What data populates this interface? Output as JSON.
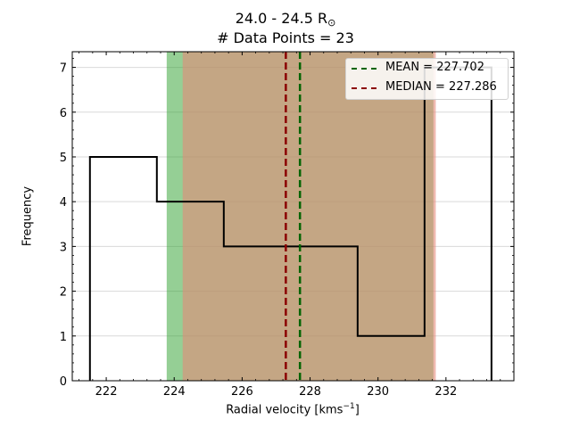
{
  "chart_data": {
    "type": "bar",
    "title_line1_prefix": "24.0 - 24.5 R",
    "title_line1_sub": "⊙",
    "title_line2": "# Data Points = 23",
    "xlabel_prefix": "Radial velocity [kms",
    "xlabel_sup": "−1",
    "xlabel_suffix": "]",
    "ylabel": "Frequency",
    "xlim": [
      221.0,
      234.0
    ],
    "ylim": [
      0,
      7.35
    ],
    "xticks": [
      222,
      224,
      226,
      228,
      230,
      232
    ],
    "yticks": [
      0,
      1,
      2,
      3,
      4,
      5,
      6,
      7
    ],
    "grid": "horizontal",
    "histogram": {
      "bin_edges": [
        221.52,
        223.49,
        225.46,
        227.43,
        229.4,
        231.37,
        233.34
      ],
      "counts": [
        5,
        4,
        3,
        3,
        1,
        7
      ]
    },
    "shaded_bands": [
      {
        "from": 223.78,
        "to": 231.63,
        "color": "#2ca02c",
        "opacity": 0.5
      },
      {
        "from": 224.25,
        "to": 231.7,
        "color": "#e48b79",
        "opacity": 0.6
      }
    ],
    "vertical_lines": [
      {
        "name": "MEAN = 227.702",
        "x": 227.702,
        "color": "#006400"
      },
      {
        "name": "MEDIAN = 227.286",
        "x": 227.286,
        "color": "#8b0000"
      }
    ],
    "legend_position": "top-right"
  }
}
